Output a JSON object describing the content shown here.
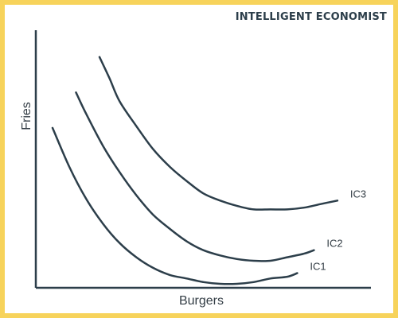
{
  "brand": {
    "logo_text": "INTELLIGENT ECONOMIST"
  },
  "chart_data": {
    "type": "line",
    "title": "",
    "xlabel": "Burgers",
    "ylabel": "Fries",
    "ticks": "none",
    "grid": false,
    "legend": "labels-at-curve-ends",
    "colors": {
      "curve": "#2c3e4a",
      "axis": "#2c3e4a",
      "frame": "#f7d35b"
    },
    "series": [
      {
        "name": "IC1",
        "points": [
          [
            0.5,
            8.8
          ],
          [
            1.0,
            6.6
          ],
          [
            1.5,
            4.8
          ],
          [
            2.0,
            3.4
          ],
          [
            2.5,
            2.3
          ],
          [
            3.0,
            1.5
          ],
          [
            3.5,
            0.9
          ],
          [
            4.0,
            0.5
          ],
          [
            4.5,
            0.3
          ],
          [
            5.0,
            0.1
          ],
          [
            5.5,
            0.0
          ],
          [
            6.0,
            0.0
          ],
          [
            6.5,
            0.1
          ],
          [
            7.0,
            0.3
          ],
          [
            7.5,
            0.4
          ],
          [
            7.8,
            0.6
          ]
        ]
      },
      {
        "name": "IC2",
        "points": [
          [
            1.2,
            10.8
          ],
          [
            1.5,
            9.6
          ],
          [
            2.0,
            7.8
          ],
          [
            2.5,
            6.3
          ],
          [
            3.0,
            5.0
          ],
          [
            3.5,
            3.9
          ],
          [
            4.0,
            3.1
          ],
          [
            4.5,
            2.4
          ],
          [
            5.0,
            1.9
          ],
          [
            5.5,
            1.6
          ],
          [
            6.0,
            1.4
          ],
          [
            6.5,
            1.3
          ],
          [
            7.0,
            1.3
          ],
          [
            7.5,
            1.5
          ],
          [
            8.0,
            1.7
          ],
          [
            8.3,
            1.9
          ]
        ]
      },
      {
        "name": "IC3",
        "points": [
          [
            1.9,
            12.8
          ],
          [
            2.2,
            11.6
          ],
          [
            2.5,
            10.3
          ],
          [
            3.0,
            8.9
          ],
          [
            3.5,
            7.6
          ],
          [
            4.0,
            6.6
          ],
          [
            4.5,
            5.8
          ],
          [
            5.0,
            5.1
          ],
          [
            5.5,
            4.7
          ],
          [
            6.0,
            4.4
          ],
          [
            6.5,
            4.2
          ],
          [
            7.0,
            4.2
          ],
          [
            7.5,
            4.2
          ],
          [
            8.0,
            4.3
          ],
          [
            8.5,
            4.5
          ],
          [
            9.0,
            4.7
          ]
        ]
      }
    ],
    "xlim": [
      0,
      10
    ],
    "ylim": [
      0,
      14
    ]
  }
}
